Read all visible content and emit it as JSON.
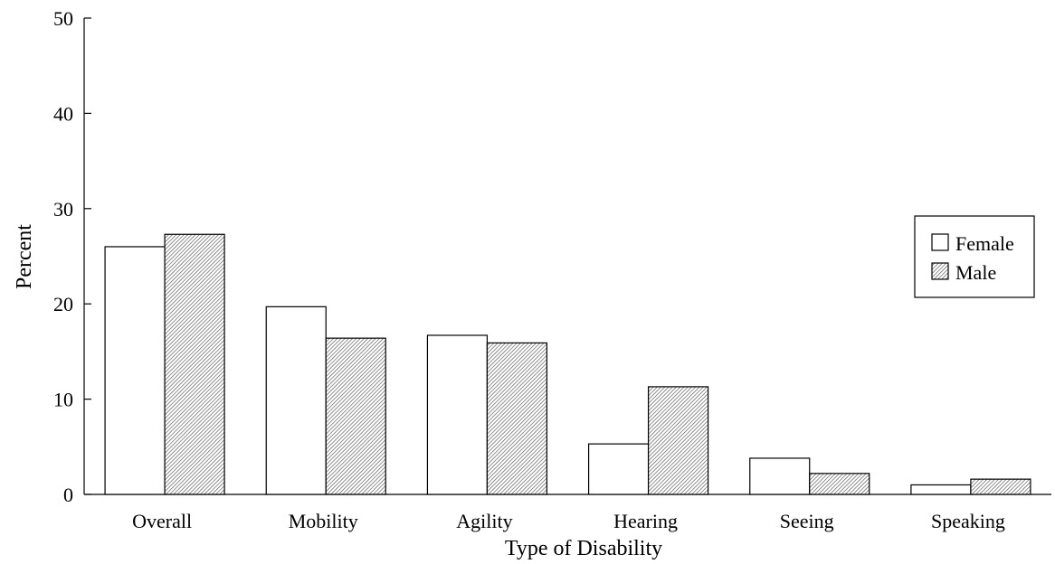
{
  "chart_data": {
    "type": "bar",
    "title": "",
    "xlabel": "Type of Disability",
    "ylabel": "Percent",
    "ylim": [
      0,
      50
    ],
    "yticks": [
      0,
      10,
      20,
      30,
      40,
      50
    ],
    "categories": [
      "Overall",
      "Mobility",
      "Agility",
      "Hearing",
      "Seeing",
      "Speaking"
    ],
    "series": [
      {
        "name": "Female",
        "values": [
          26.0,
          19.7,
          16.7,
          5.3,
          3.8,
          1.0
        ],
        "fill": "white"
      },
      {
        "name": "Male",
        "values": [
          27.3,
          16.4,
          15.9,
          11.3,
          2.2,
          1.6
        ],
        "fill": "hatched"
      }
    ],
    "legend_position": "right",
    "grid": false
  }
}
